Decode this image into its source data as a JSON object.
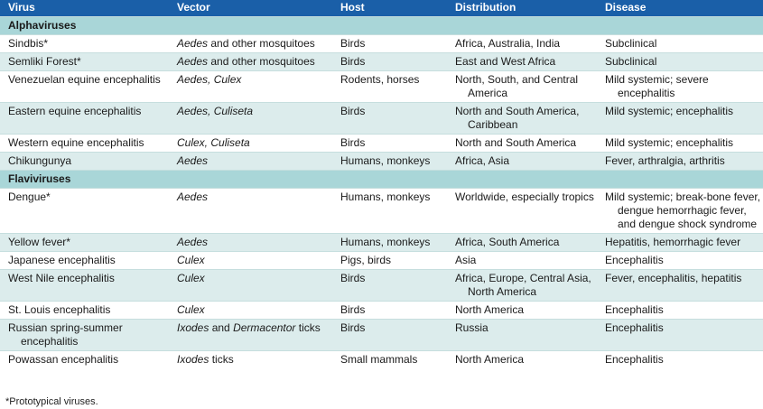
{
  "columns": [
    "Virus",
    "Vector",
    "Host",
    "Distribution",
    "Disease"
  ],
  "groups": [
    {
      "title": "Alphaviruses",
      "rows": [
        {
          "virus": "Sindbis*",
          "vector_italic": "Aedes",
          "vector_rest": " and other mosquitoes",
          "host": "Birds",
          "distribution": "Africa, Australia, India",
          "disease": "Subclinical"
        },
        {
          "virus": "Semliki Forest*",
          "vector_italic": "Aedes",
          "vector_rest": " and other mosquitoes",
          "host": "Birds",
          "distribution": "East and West Africa",
          "disease": "Subclinical"
        },
        {
          "virus": "Venezuelan equine encephalitis",
          "vector_italic": "Aedes, Culex",
          "vector_rest": "",
          "host": "Rodents, horses",
          "distribution": "North, South, and Central America",
          "disease": "Mild systemic; severe encephalitis"
        },
        {
          "virus": "Eastern equine encephalitis",
          "vector_italic": "Aedes, Culiseta",
          "vector_rest": "",
          "host": "Birds",
          "distribution": "North and South America, Caribbean",
          "disease": "Mild systemic; encephalitis"
        },
        {
          "virus": "Western equine encephalitis",
          "vector_italic": "Culex, Culiseta",
          "vector_rest": "",
          "host": "Birds",
          "distribution": "North and South America",
          "disease": "Mild systemic; encephalitis"
        },
        {
          "virus": "Chikungunya",
          "vector_italic": "Aedes",
          "vector_rest": "",
          "host": "Humans, monkeys",
          "distribution": "Africa, Asia",
          "disease": "Fever, arthralgia, arthritis"
        }
      ]
    },
    {
      "title": "Flaviviruses",
      "rows": [
        {
          "virus": "Dengue*",
          "vector_italic": "Aedes",
          "vector_rest": "",
          "host": "Humans, monkeys",
          "distribution": "Worldwide, especially tropics",
          "disease": "Mild systemic; break-bone fever, dengue hemorrhagic fever, and dengue shock syndrome"
        },
        {
          "virus": "Yellow fever*",
          "vector_italic": "Aedes",
          "vector_rest": "",
          "host": "Humans, monkeys",
          "distribution": "Africa, South America",
          "disease": "Hepatitis, hemorrhagic fever"
        },
        {
          "virus": "Japanese encephalitis",
          "vector_italic": "Culex",
          "vector_rest": "",
          "host": "Pigs, birds",
          "distribution": "Asia",
          "disease": "Encephalitis"
        },
        {
          "virus": "West Nile encephalitis",
          "vector_italic": "Culex",
          "vector_rest": "",
          "host": "Birds",
          "distribution": "Africa, Europe, Central Asia, North America",
          "disease": "Fever, encephalitis, hepatitis"
        },
        {
          "virus": "St. Louis encephalitis",
          "vector_italic": "Culex",
          "vector_rest": "",
          "host": "Birds",
          "distribution": "North America",
          "disease": "Encephalitis"
        },
        {
          "virus": "Russian spring-summer encephalitis",
          "vector_italic": "Ixodes",
          "vector_rest": " and ",
          "vector_italic2": "Dermacentor",
          "vector_rest2": " ticks",
          "host": "Birds",
          "distribution": "Russia",
          "disease": "Encephalitis"
        },
        {
          "virus": "Powassan encephalitis",
          "vector_italic": "Ixodes",
          "vector_rest": " ticks",
          "host": "Small mammals",
          "distribution": "North America",
          "disease": "Encephalitis"
        }
      ]
    }
  ],
  "footnote": "*Prototypical viruses.",
  "colors": {
    "header": "#1a5fa8",
    "group": "#a9d6d8",
    "stripe": "#dcecec"
  }
}
